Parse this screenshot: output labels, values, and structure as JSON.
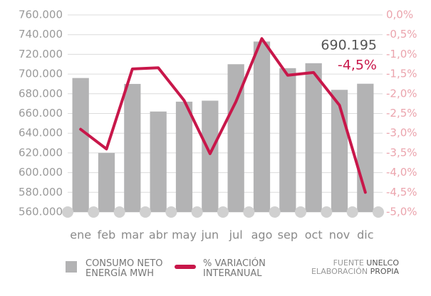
{
  "chart_data": {
    "type": "bar_line",
    "categories": [
      "ene",
      "feb",
      "mar",
      "abr",
      "may",
      "jun",
      "jul",
      "ago",
      "sep",
      "oct",
      "nov",
      "dic"
    ],
    "series": [
      {
        "name": "CONSUMO NETO ENERGÍA MWH",
        "type": "bar",
        "color": "#b3b3b4",
        "values": [
          696000,
          620000,
          690000,
          662000,
          672000,
          673000,
          710000,
          733000,
          706000,
          711000,
          684000,
          690195
        ],
        "value_labels": [
          null,
          null,
          null,
          null,
          null,
          null,
          null,
          null,
          null,
          null,
          null,
          "690.195"
        ]
      },
      {
        "name": "% VARIACIÓN INTERANUAL",
        "type": "line",
        "axis": "y2",
        "color": "#c8174a",
        "values": [
          -2.9,
          -3.4,
          -1.37,
          -1.34,
          -2.17,
          -3.52,
          -2.2,
          -0.6,
          -1.53,
          -1.46,
          -2.29,
          -4.5
        ],
        "value_labels": [
          null,
          null,
          null,
          null,
          null,
          null,
          null,
          null,
          null,
          null,
          null,
          "-4,5%"
        ]
      }
    ],
    "ylim": [
      560000,
      760000
    ],
    "yticks": [
      {
        "value": 560000,
        "label": "560.000"
      },
      {
        "value": 580000,
        "label": "580.000"
      },
      {
        "value": 600000,
        "label": "600.000"
      },
      {
        "value": 620000,
        "label": "620.000"
      },
      {
        "value": 640000,
        "label": "640.000"
      },
      {
        "value": 660000,
        "label": "660.000"
      },
      {
        "value": 680000,
        "label": "680.000"
      },
      {
        "value": 700000,
        "label": "700.000"
      },
      {
        "value": 720000,
        "label": "720.000"
      },
      {
        "value": 740000,
        "label": "740.000"
      },
      {
        "value": 760000,
        "label": "760.000"
      }
    ],
    "y2lim": [
      -5,
      0
    ],
    "y2ticks": [
      {
        "value": 0,
        "label": "0,0%"
      },
      {
        "value": -0.5,
        "label": "-0,5%"
      },
      {
        "value": -1,
        "label": "-1,0%"
      },
      {
        "value": -1.5,
        "label": "-1,5%"
      },
      {
        "value": -2,
        "label": "-2,0%"
      },
      {
        "value": -2.5,
        "label": "-2,5%"
      },
      {
        "value": -3,
        "label": "-3,0%"
      },
      {
        "value": -3.5,
        "label": "-3,5%"
      },
      {
        "value": -4,
        "label": "-4,0%"
      },
      {
        "value": -4.5,
        "label": "-4,5%"
      },
      {
        "value": -5,
        "label": "-5,0%"
      }
    ],
    "grid": true,
    "source_lines": [
      [
        "FUENTE",
        "UNELCO"
      ],
      [
        "ELABORACIÓN",
        "PROPIA"
      ]
    ]
  }
}
